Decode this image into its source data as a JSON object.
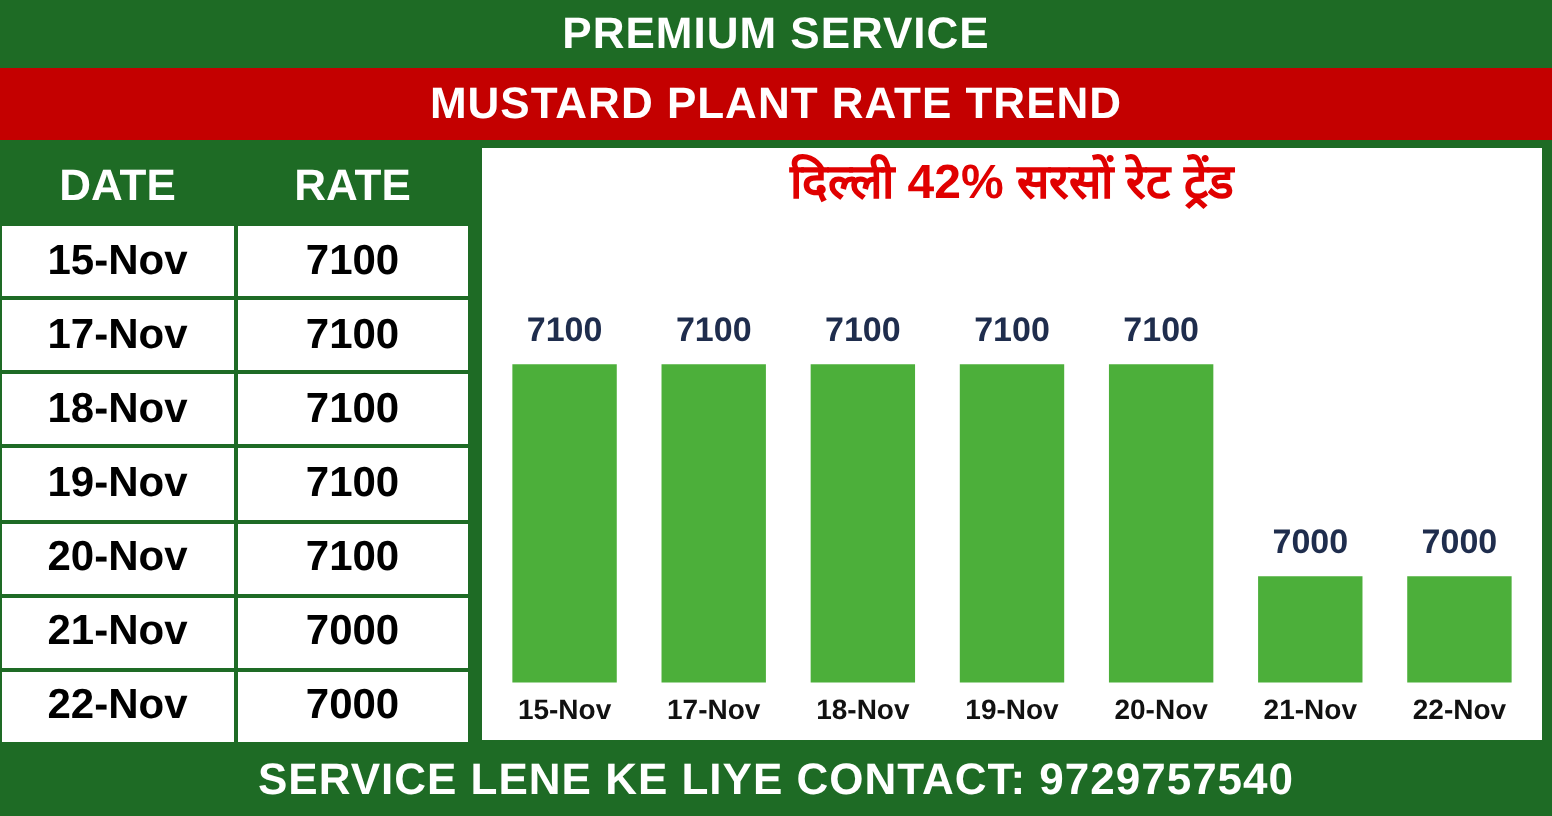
{
  "chart_data": [
    {
      "type": "other",
      "annotations": [
        "DATE",
        "RATE",
        "15-Nov",
        "7100",
        "17-Nov",
        "7100",
        "18-Nov",
        "7100",
        "19-Nov",
        "7100",
        "20-Nov",
        "7100",
        "21-Nov",
        "7000",
        "22-Nov",
        "7000"
      ]
    },
    {
      "type": "bar",
      "title": "दिल्ली 42% सरसों रेट ट्रेंड",
      "categories": [
        "15-Nov",
        "17-Nov",
        "18-Nov",
        "19-Nov",
        "20-Nov",
        "21-Nov",
        "22-Nov"
      ],
      "values": [
        7100,
        7100,
        7100,
        7100,
        7100,
        7000,
        7000
      ],
      "color": "#4caf3a",
      "data_labels": true,
      "grid": false,
      "legend": false,
      "annotations": [
        "PREMIUM SERVICE",
        "MUSTARD PLANT RATE TREND",
        "SERVICE LENE KE LIYE CONTACT: 9729757540"
      ]
    }
  ]
}
